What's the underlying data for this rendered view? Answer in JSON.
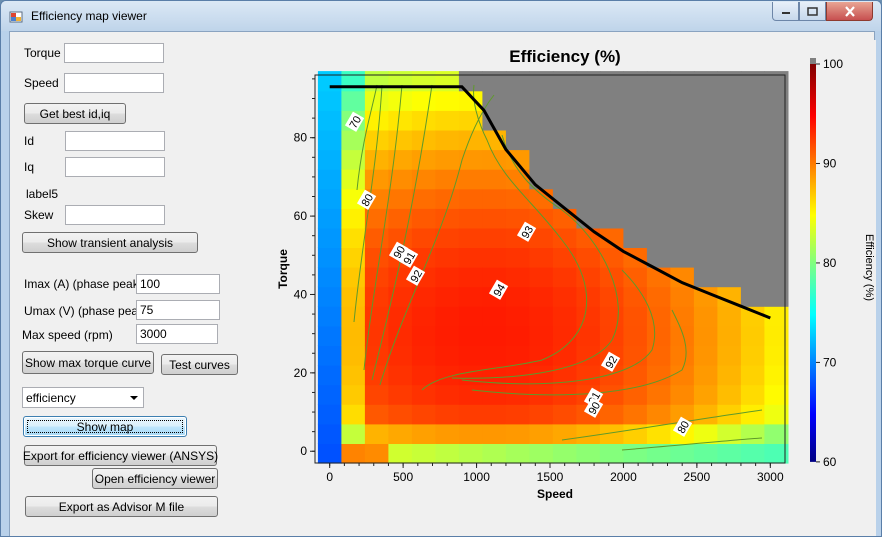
{
  "window": {
    "title": "Efficiency map viewer"
  },
  "form": {
    "torque_label": "Torque",
    "torque_value": "",
    "speed_label": "Speed",
    "speed_value": "",
    "get_best_label": "Get best id,iq",
    "id_label": "Id",
    "id_value": "",
    "iq_label": "Iq",
    "iq_value": "",
    "label5": "label5",
    "skew_label": "Skew",
    "skew_value": "",
    "transient_label": "Show transient analysis",
    "imax_label": "Imax (A) (phase peak)",
    "imax_value": "100",
    "umax_label": "Umax (V) (phase peak)",
    "umax_value": "75",
    "maxspeed_label": "Max speed (rpm)",
    "maxspeed_value": "3000",
    "show_max_torque_label": "Show max torque curve",
    "test_curves_label": "Test curves",
    "map_type_selected": "efficiency",
    "show_map_label": "Show map",
    "export_ansys_label": "Export for efficiency viewer (ANSYS)",
    "open_viewer_label": "Open efficiency viewer",
    "export_advisor_label": "Export as Advisor M file"
  },
  "chart_data": {
    "type": "heatmap",
    "title": "Efficiency (%)",
    "xlabel": "Speed",
    "ylabel": "Torque",
    "colorbar_label": "Efficiency (%)",
    "xlim": [
      -100,
      3100
    ],
    "ylim": [
      -3,
      96
    ],
    "xticks": [
      "0",
      "500",
      "1000",
      "1500",
      "2000",
      "2500",
      "3000"
    ],
    "yticks": [
      "0",
      "20",
      "40",
      "60",
      "80"
    ],
    "colorbar_range": [
      60,
      100
    ],
    "colorbar_ticks": [
      "60",
      "70",
      "80",
      "90",
      "100"
    ],
    "contour_labels": [
      "70",
      "80",
      "90",
      "91",
      "92",
      "93",
      "94",
      "92",
      "91",
      "90",
      "80"
    ],
    "max_torque_curve": {
      "speed": [
        0,
        900,
        1050,
        1200,
        1400,
        1600,
        1800,
        2000,
        2200,
        2400,
        2600,
        2800,
        3000
      ],
      "torque": [
        93,
        93,
        87,
        77,
        68,
        62,
        56,
        51,
        47,
        43,
        40,
        37,
        34
      ]
    },
    "grid": false,
    "missing_color": "#808080"
  }
}
